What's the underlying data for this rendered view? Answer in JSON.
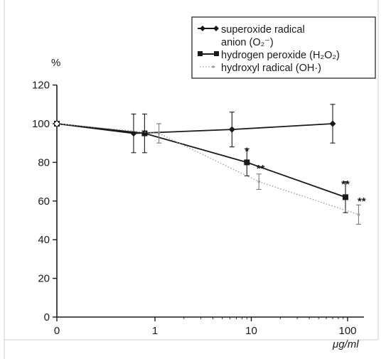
{
  "chart_data": {
    "type": "line",
    "xlabel": "μg/ml",
    "ylabel": "%",
    "xscale": "log",
    "xlim": [
      0,
      150
    ],
    "ylim": [
      0,
      120
    ],
    "x_ticks": [
      {
        "value": 0,
        "label": "0"
      },
      {
        "value": 1,
        "label": "1"
      },
      {
        "value": 10,
        "label": "10"
      },
      {
        "value": 100,
        "label": "100"
      }
    ],
    "y_ticks": [
      {
        "value": 0,
        "label": "0"
      },
      {
        "value": 20,
        "label": "20"
      },
      {
        "value": 40,
        "label": "40"
      },
      {
        "value": 60,
        "label": "60"
      },
      {
        "value": 80,
        "label": "80"
      },
      {
        "value": 100,
        "label": "100"
      },
      {
        "value": 120,
        "label": "120"
      }
    ],
    "legend_position": "top-right",
    "series": [
      {
        "name": "superoxide radical anion (O₂⁻)",
        "legend_lines": [
          "superoxide radical",
          "anion (O₂⁻)"
        ],
        "marker": "diamond",
        "line_style": "solid",
        "color": "#1a1a1a",
        "points": [
          {
            "x": 0,
            "y": 100,
            "err": 0
          },
          {
            "x": 0.6,
            "y": 95,
            "err": 10
          },
          {
            "x": 6.3,
            "y": 97,
            "err": 9
          },
          {
            "x": 70,
            "y": 100,
            "err": 10
          }
        ]
      },
      {
        "name": "hydrogen peroxide (H₂O₂)",
        "legend_lines": [
          "hydrogen peroxide (H₂O₂)"
        ],
        "marker": "square",
        "line_style": "solid",
        "color": "#1a1a1a",
        "points": [
          {
            "x": 0,
            "y": 100,
            "err": 0
          },
          {
            "x": 0.78,
            "y": 95,
            "err": 10
          },
          {
            "x": 9,
            "y": 80,
            "err": 7
          },
          {
            "x": 95,
            "y": 62,
            "err": 8
          }
        ]
      },
      {
        "name": "hydroxyl radical (OH·)",
        "legend_lines": [
          "hydroxyl radical (OH·)"
        ],
        "marker": "dot",
        "line_style": "dotted",
        "color": "#9a9a9a",
        "points": [
          {
            "x": 0,
            "y": 100,
            "err": 0
          },
          {
            "x": 1.1,
            "y": 95,
            "err": 5
          },
          {
            "x": 12,
            "y": 70,
            "err": 4
          },
          {
            "x": 130,
            "y": 53,
            "err": 5
          }
        ]
      }
    ],
    "annotations": [
      {
        "x": 9,
        "y": 84,
        "text": "*"
      },
      {
        "x": 12.5,
        "y": 75,
        "text": "**"
      },
      {
        "x": 95,
        "y": 67,
        "text": "**"
      },
      {
        "x": 140,
        "y": 58,
        "text": "**"
      }
    ]
  }
}
